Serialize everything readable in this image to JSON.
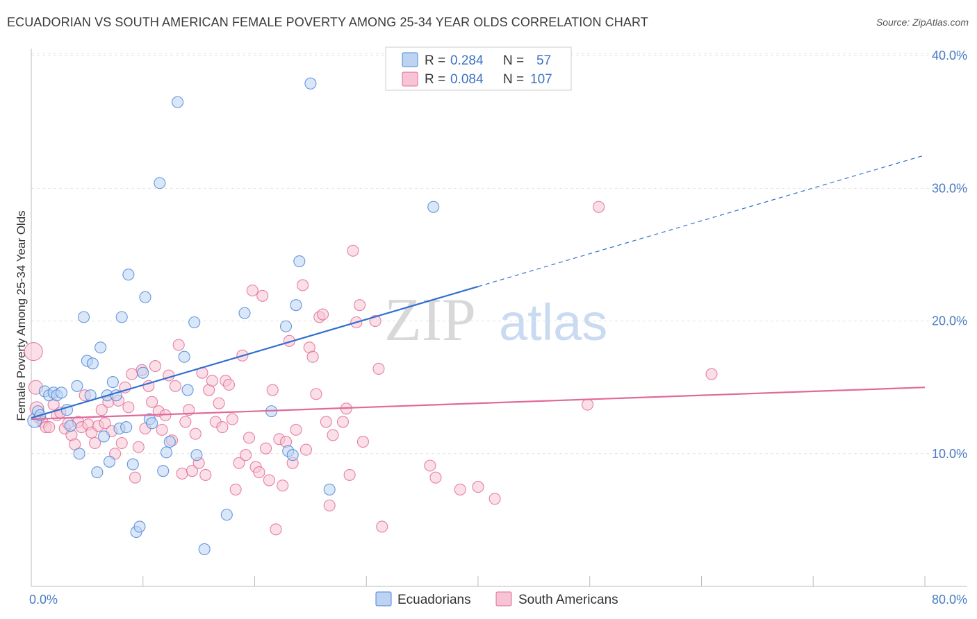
{
  "header": {
    "title": "ECUADORIAN VS SOUTH AMERICAN FEMALE POVERTY AMONG 25-34 YEAR OLDS CORRELATION CHART",
    "source": "Source: ZipAtlas.com"
  },
  "watermark": {
    "zip": "ZIP",
    "atlas": "atlas"
  },
  "colors": {
    "blue": "#4a86d8",
    "blue_fill": "#bcd3f2",
    "pink": "#e36b97",
    "pink_fill": "#f6c4d4",
    "blue_line": "#2f6fd0",
    "pink_line": "#e0699a"
  },
  "legend": {
    "row1": {
      "r_label": "R = ",
      "r_value": "0.284",
      "n_label": "N = ",
      "n_value": "57"
    },
    "row2": {
      "r_label": "R = ",
      "r_value": "0.084",
      "n_label": "N = ",
      "n_value": "107"
    }
  },
  "chart_data": {
    "type": "scatter",
    "title": "ECUADORIAN VS SOUTH AMERICAN FEMALE POVERTY AMONG 25-34 YEAR OLDS CORRELATION CHART",
    "xlabel": "",
    "ylabel": "Female Poverty Among 25-34 Year Olds",
    "xlim": [
      0,
      80
    ],
    "ylim": [
      0,
      41
    ],
    "x_tick_labels": [
      "0.0%",
      "80.0%"
    ],
    "y_ticks": [
      10,
      20,
      30,
      40
    ],
    "y_tick_labels": [
      "10.0%",
      "20.0%",
      "30.0%",
      "40.0%"
    ],
    "grid": true,
    "legend_position": "top-center",
    "series": [
      {
        "name": "Ecuadorians",
        "R": 0.284,
        "N": 57,
        "trend": {
          "x0": 0,
          "y0": 12.7,
          "x1": 40,
          "y1": 22.6,
          "dash_to_x": 80,
          "dash_to_y": 32.5
        },
        "points": [
          [
            0.3,
            12.5,
            10
          ],
          [
            0.6,
            13.2,
            8
          ],
          [
            0.8,
            12.9,
            8
          ],
          [
            1.2,
            14.7,
            8
          ],
          [
            1.6,
            14.4,
            8
          ],
          [
            2.0,
            14.6,
            8
          ],
          [
            2.3,
            14.4,
            8
          ],
          [
            2.7,
            14.6,
            8
          ],
          [
            3.2,
            13.3,
            8
          ],
          [
            3.5,
            12.1,
            8
          ],
          [
            4.1,
            15.1,
            8
          ],
          [
            4.3,
            10.0,
            8
          ],
          [
            4.7,
            20.3,
            8
          ],
          [
            5.0,
            17.0,
            8
          ],
          [
            5.3,
            14.4,
            8
          ],
          [
            5.5,
            16.8,
            8
          ],
          [
            5.9,
            8.6,
            8
          ],
          [
            6.2,
            18.0,
            8
          ],
          [
            6.5,
            11.3,
            8
          ],
          [
            6.8,
            14.4,
            8
          ],
          [
            7.0,
            9.4,
            8
          ],
          [
            7.3,
            15.4,
            8
          ],
          [
            7.6,
            14.4,
            8
          ],
          [
            7.9,
            11.9,
            8
          ],
          [
            8.1,
            20.3,
            8
          ],
          [
            8.5,
            12.0,
            8
          ],
          [
            8.7,
            23.5,
            8
          ],
          [
            9.1,
            9.2,
            8
          ],
          [
            9.4,
            4.1,
            8
          ],
          [
            9.7,
            4.5,
            8
          ],
          [
            10.0,
            16.1,
            8
          ],
          [
            10.2,
            21.8,
            8
          ],
          [
            10.6,
            12.6,
            8
          ],
          [
            10.8,
            12.3,
            8
          ],
          [
            11.5,
            30.4,
            8
          ],
          [
            11.8,
            8.7,
            8
          ],
          [
            12.1,
            10.1,
            8
          ],
          [
            12.4,
            10.9,
            8
          ],
          [
            13.1,
            36.5,
            8
          ],
          [
            13.7,
            17.3,
            8
          ],
          [
            14.0,
            14.8,
            8
          ],
          [
            14.6,
            19.9,
            8
          ],
          [
            14.8,
            9.9,
            8
          ],
          [
            15.5,
            2.8,
            8
          ],
          [
            17.5,
            5.4,
            8
          ],
          [
            19.1,
            20.6,
            8
          ],
          [
            21.5,
            13.2,
            8
          ],
          [
            22.8,
            19.6,
            8
          ],
          [
            23.0,
            10.2,
            8
          ],
          [
            23.4,
            9.9,
            8
          ],
          [
            23.7,
            21.2,
            8
          ],
          [
            24.0,
            24.5,
            8
          ],
          [
            25.0,
            37.9,
            8
          ],
          [
            26.7,
            7.3,
            8
          ],
          [
            36.0,
            28.6,
            8
          ]
        ]
      },
      {
        "name": "South Americans",
        "R": 0.084,
        "N": 107,
        "trend": {
          "x0": 0,
          "y0": 12.6,
          "x1": 80,
          "y1": 15.0
        },
        "points": [
          [
            0.2,
            17.7,
            13
          ],
          [
            0.4,
            15.0,
            10
          ],
          [
            0.5,
            13.4,
            10
          ],
          [
            0.7,
            12.7,
            8
          ],
          [
            1.0,
            12.4,
            8
          ],
          [
            1.3,
            12.0,
            8
          ],
          [
            1.6,
            12.0,
            8
          ],
          [
            2.0,
            13.7,
            8
          ],
          [
            2.3,
            12.9,
            8
          ],
          [
            2.6,
            13.1,
            8
          ],
          [
            3.0,
            11.9,
            8
          ],
          [
            3.3,
            12.3,
            8
          ],
          [
            3.6,
            11.4,
            8
          ],
          [
            3.9,
            10.7,
            8
          ],
          [
            4.2,
            12.4,
            8
          ],
          [
            4.5,
            12.0,
            8
          ],
          [
            4.8,
            14.4,
            8
          ],
          [
            5.1,
            12.2,
            8
          ],
          [
            5.4,
            11.6,
            8
          ],
          [
            5.7,
            10.8,
            8
          ],
          [
            6.0,
            12.1,
            8
          ],
          [
            6.3,
            13.3,
            8
          ],
          [
            6.6,
            12.3,
            8
          ],
          [
            6.9,
            13.9,
            8
          ],
          [
            7.2,
            11.7,
            8
          ],
          [
            7.5,
            10.0,
            8
          ],
          [
            7.8,
            14.0,
            8
          ],
          [
            8.1,
            10.8,
            8
          ],
          [
            8.4,
            15.0,
            8
          ],
          [
            8.7,
            13.5,
            8
          ],
          [
            9.0,
            16.0,
            8
          ],
          [
            9.3,
            8.2,
            8
          ],
          [
            9.6,
            10.5,
            8
          ],
          [
            9.9,
            16.3,
            8
          ],
          [
            10.2,
            11.9,
            8
          ],
          [
            10.5,
            15.1,
            8
          ],
          [
            10.8,
            13.9,
            8
          ],
          [
            11.1,
            16.6,
            8
          ],
          [
            11.4,
            13.2,
            8
          ],
          [
            11.7,
            11.8,
            8
          ],
          [
            12.0,
            12.9,
            8
          ],
          [
            12.3,
            15.9,
            8
          ],
          [
            12.6,
            11.0,
            8
          ],
          [
            12.9,
            15.1,
            8
          ],
          [
            13.2,
            18.2,
            8
          ],
          [
            13.5,
            8.5,
            8
          ],
          [
            13.8,
            12.4,
            8
          ],
          [
            14.1,
            13.3,
            8
          ],
          [
            14.4,
            8.7,
            8
          ],
          [
            14.7,
            11.5,
            8
          ],
          [
            15.0,
            9.3,
            8
          ],
          [
            15.3,
            16.1,
            8
          ],
          [
            15.6,
            8.4,
            8
          ],
          [
            15.9,
            14.8,
            8
          ],
          [
            16.2,
            15.5,
            8
          ],
          [
            16.5,
            12.4,
            8
          ],
          [
            16.8,
            13.8,
            8
          ],
          [
            17.1,
            12.0,
            8
          ],
          [
            17.4,
            15.5,
            8
          ],
          [
            17.7,
            15.2,
            8
          ],
          [
            18.0,
            12.6,
            8
          ],
          [
            18.3,
            7.3,
            8
          ],
          [
            18.6,
            9.3,
            8
          ],
          [
            18.9,
            17.4,
            8
          ],
          [
            19.2,
            9.9,
            8
          ],
          [
            19.5,
            11.2,
            8
          ],
          [
            19.8,
            22.3,
            8
          ],
          [
            20.1,
            9.0,
            8
          ],
          [
            20.4,
            8.6,
            8
          ],
          [
            20.7,
            21.9,
            8
          ],
          [
            21.0,
            10.4,
            8
          ],
          [
            21.3,
            8.0,
            8
          ],
          [
            21.6,
            14.8,
            8
          ],
          [
            21.9,
            4.3,
            8
          ],
          [
            22.2,
            11.1,
            8
          ],
          [
            22.5,
            7.6,
            8
          ],
          [
            22.8,
            10.9,
            8
          ],
          [
            23.1,
            18.5,
            8
          ],
          [
            23.4,
            9.3,
            8
          ],
          [
            23.7,
            11.8,
            8
          ],
          [
            24.3,
            22.7,
            8
          ],
          [
            24.6,
            10.3,
            8
          ],
          [
            24.9,
            18.0,
            8
          ],
          [
            25.2,
            17.3,
            8
          ],
          [
            25.5,
            14.5,
            8
          ],
          [
            25.8,
            20.3,
            8
          ],
          [
            26.1,
            20.5,
            8
          ],
          [
            26.4,
            12.4,
            8
          ],
          [
            26.7,
            6.1,
            8
          ],
          [
            27.0,
            11.4,
            8
          ],
          [
            27.9,
            12.4,
            8
          ],
          [
            28.2,
            13.4,
            8
          ],
          [
            28.5,
            8.4,
            8
          ],
          [
            28.8,
            25.3,
            8
          ],
          [
            29.1,
            19.9,
            8
          ],
          [
            29.4,
            21.2,
            8
          ],
          [
            29.7,
            10.9,
            8
          ],
          [
            30.8,
            20.0,
            8
          ],
          [
            31.1,
            16.4,
            8
          ],
          [
            31.4,
            4.5,
            8
          ],
          [
            35.7,
            9.1,
            8
          ],
          [
            36.2,
            8.2,
            8
          ],
          [
            38.4,
            7.3,
            8
          ],
          [
            40.0,
            7.5,
            8
          ],
          [
            41.5,
            6.6,
            8
          ],
          [
            49.8,
            13.7,
            8
          ],
          [
            50.8,
            28.6,
            8
          ],
          [
            60.9,
            16.0,
            8
          ]
        ]
      }
    ],
    "series_legend": [
      "Ecuadorians",
      "South Americans"
    ]
  }
}
